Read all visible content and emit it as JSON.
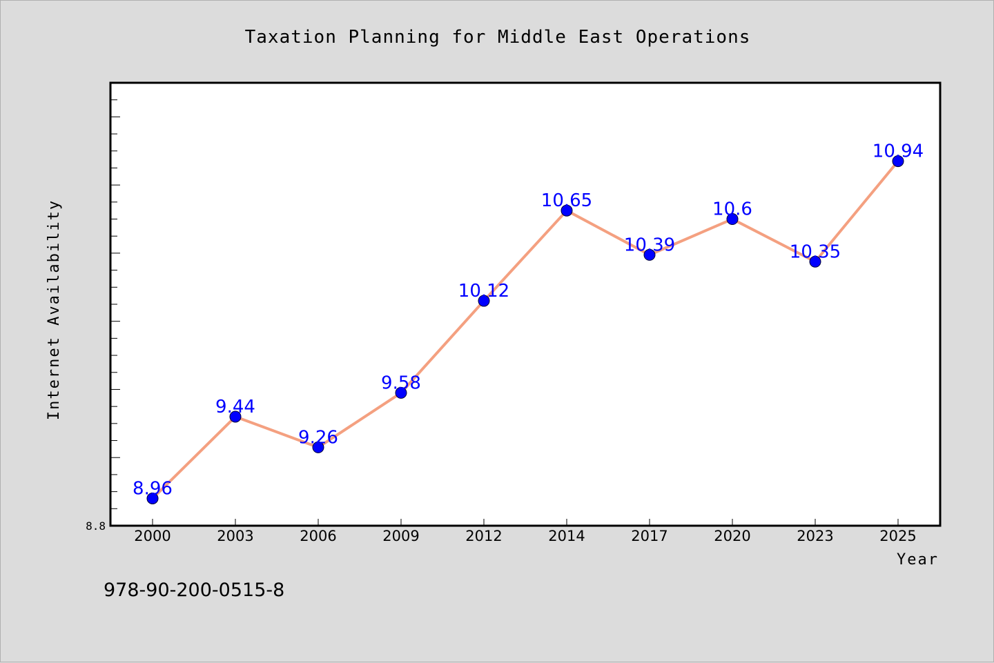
{
  "chart_data": {
    "type": "line",
    "title": "Taxation Planning for Middle East Operations",
    "xlabel": "Year",
    "ylabel": "Internet Availability",
    "categories": [
      "2000",
      "2003",
      "2006",
      "2009",
      "2012",
      "2014",
      "2017",
      "2020",
      "2023",
      "2025"
    ],
    "series": [
      {
        "values": [
          8.96,
          9.44,
          9.26,
          9.58,
          10.12,
          10.65,
          10.39,
          10.6,
          10.35,
          10.94
        ],
        "labels": [
          "8.96",
          "9.44",
          "9.26",
          "9.58",
          "10.12",
          "10.65",
          "10.39",
          "10.6",
          "10.35",
          "10.94"
        ],
        "line_color": "#f4a080",
        "marker_color": "#0000ff"
      }
    ],
    "y_tick_labels": [
      {
        "value": 8.8,
        "label": "8.8"
      }
    ],
    "ylim": [
      8.8,
      11.4
    ],
    "grid": false,
    "legend": "none"
  },
  "footer": {
    "code": "978-90-200-0515-8"
  }
}
